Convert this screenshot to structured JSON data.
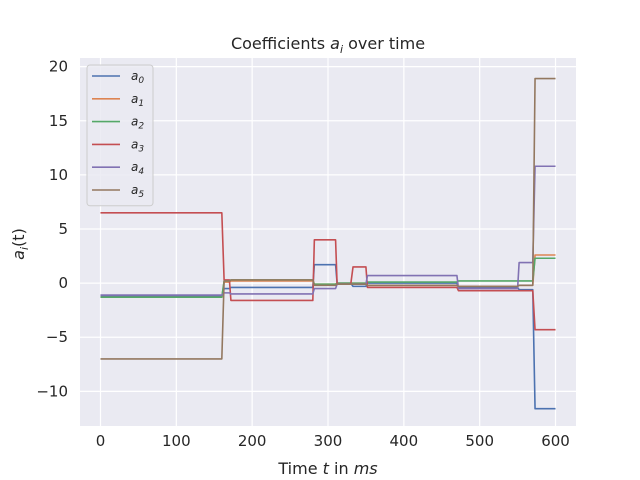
{
  "chart_data": {
    "type": "line",
    "title_parts": [
      "Coefficients ",
      "a",
      "i",
      " over time"
    ],
    "xlabel_parts": [
      "Time ",
      "t",
      " in ",
      "ms"
    ],
    "ylabel_parts": [
      "a",
      "i",
      "(t)"
    ],
    "xlim": [
      -27,
      627
    ],
    "ylim": [
      -13.2,
      20.8
    ],
    "xticks": [
      0,
      100,
      200,
      300,
      400,
      500,
      600
    ],
    "yticks": [
      -10,
      -5,
      0,
      5,
      10,
      15,
      20
    ],
    "grid": true,
    "legend_position": "top-left",
    "series": [
      {
        "name": "a",
        "sub": "0",
        "color": "#4c72b0",
        "x": [
          0,
          160,
          163,
          170,
          172,
          280,
          282,
          310,
          312,
          330,
          333,
          350,
          352,
          470,
          472,
          550,
          552,
          570,
          573,
          600
        ],
        "y": [
          -1.2,
          -1.2,
          -0.5,
          -0.5,
          -0.4,
          -0.4,
          1.7,
          1.7,
          0.0,
          0.0,
          -0.3,
          -0.3,
          0.0,
          0.0,
          -0.4,
          -0.4,
          -0.6,
          -0.6,
          -11.6,
          -11.6
        ]
      },
      {
        "name": "a",
        "sub": "1",
        "color": "#dd8452",
        "x": [
          0,
          160,
          163,
          170,
          172,
          280,
          282,
          310,
          312,
          350,
          352,
          470,
          472,
          550,
          552,
          570,
          573,
          600
        ],
        "y": [
          -1.3,
          -1.3,
          0.1,
          0.1,
          0.2,
          0.2,
          -0.1,
          -0.1,
          0.0,
          0.0,
          -0.2,
          -0.2,
          -0.3,
          -0.3,
          -0.2,
          -0.2,
          2.6,
          2.6
        ]
      },
      {
        "name": "a",
        "sub": "2",
        "color": "#55a868",
        "x": [
          0,
          160,
          163,
          170,
          172,
          280,
          282,
          310,
          312,
          350,
          352,
          470,
          472,
          550,
          552,
          570,
          573,
          600
        ],
        "y": [
          -1.3,
          -1.3,
          0.2,
          0.2,
          0.3,
          0.3,
          -0.1,
          -0.1,
          0.0,
          0.0,
          0.1,
          0.1,
          0.2,
          0.2,
          0.2,
          0.2,
          2.3,
          2.3
        ]
      },
      {
        "name": "a",
        "sub": "3",
        "color": "#c44e52",
        "x": [
          0,
          160,
          163,
          170,
          172,
          280,
          282,
          310,
          312,
          330,
          333,
          350,
          352,
          470,
          472,
          550,
          552,
          570,
          573,
          600
        ],
        "y": [
          6.5,
          6.5,
          0.3,
          0.3,
          -1.6,
          -1.6,
          4.0,
          4.0,
          -0.1,
          -0.1,
          1.5,
          1.5,
          -0.4,
          -0.4,
          -0.7,
          -0.7,
          -0.7,
          -0.7,
          -4.3,
          -4.3
        ]
      },
      {
        "name": "a",
        "sub": "4",
        "color": "#8172b3",
        "x": [
          0,
          160,
          163,
          170,
          172,
          280,
          282,
          310,
          312,
          350,
          352,
          470,
          472,
          550,
          552,
          570,
          573,
          600
        ],
        "y": [
          -1.1,
          -1.1,
          -0.9,
          -0.9,
          -1.0,
          -1.0,
          -0.5,
          -0.5,
          -0.1,
          -0.1,
          0.7,
          0.7,
          -0.5,
          -0.5,
          1.9,
          1.9,
          10.8,
          10.8
        ]
      },
      {
        "name": "a",
        "sub": "5",
        "color": "#937860",
        "x": [
          0,
          160,
          163,
          170,
          172,
          280,
          282,
          310,
          312,
          350,
          352,
          470,
          472,
          550,
          552,
          570,
          573,
          600
        ],
        "y": [
          -7.0,
          -7.0,
          0.2,
          0.2,
          0.3,
          0.3,
          -0.2,
          -0.2,
          -0.1,
          -0.1,
          -0.2,
          -0.2,
          -0.3,
          -0.3,
          -0.2,
          -0.2,
          18.9,
          18.9
        ]
      }
    ]
  }
}
